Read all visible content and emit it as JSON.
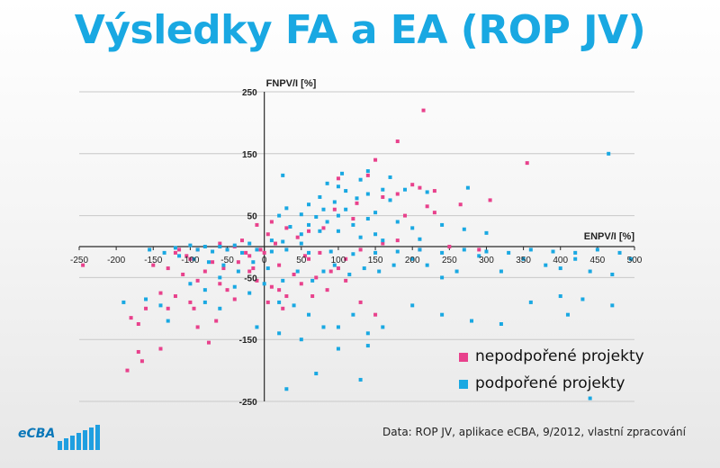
{
  "title": "Výsledky FA a EA (ROP JV)",
  "source": "Data: ROP JV,  aplikace eCBA, 9/2012,  vlastní zpracování",
  "logo_text": "eCBA",
  "colors": {
    "title": "#19a8e2",
    "nepodporene": "#e8418c",
    "podporene": "#19a8e2",
    "grid": "#c8c8c8",
    "axis": "#2a2a2a"
  },
  "chart_data": {
    "type": "scatter",
    "title": "Výsledky FA a EA (ROP JV)",
    "xlabel": "ENPV/I [%]",
    "ylabel": "FNPV/I [%]",
    "xlim": [
      -250,
      500
    ],
    "ylim": [
      -250,
      250
    ],
    "xticks": [
      -250,
      -200,
      -150,
      -100,
      -50,
      0,
      50,
      100,
      150,
      200,
      250,
      300,
      350,
      400,
      450,
      500
    ],
    "yticks": [
      -250,
      -150,
      -50,
      50,
      150,
      250
    ],
    "grid": true,
    "legend_position": "bottom-right",
    "series": [
      {
        "name": "nepodpořené projekty",
        "color": "#e8418c",
        "marker": "square",
        "points": [
          [
            215,
            220
          ],
          [
            180,
            170
          ],
          [
            150,
            140
          ],
          [
            355,
            135
          ],
          [
            140,
            115
          ],
          [
            100,
            110
          ],
          [
            200,
            100
          ],
          [
            210,
            95
          ],
          [
            230,
            90
          ],
          [
            180,
            85
          ],
          [
            160,
            80
          ],
          [
            305,
            75
          ],
          [
            220,
            65
          ],
          [
            265,
            68
          ],
          [
            230,
            55
          ],
          [
            190,
            50
          ],
          [
            120,
            45
          ],
          [
            10,
            40
          ],
          [
            30,
            30
          ],
          [
            60,
            25
          ],
          [
            -10,
            35
          ],
          [
            5,
            20
          ],
          [
            -30,
            10
          ],
          [
            -60,
            5
          ],
          [
            -40,
            0
          ],
          [
            -90,
            -5
          ],
          [
            -120,
            -10
          ],
          [
            -100,
            -20
          ],
          [
            -70,
            -25
          ],
          [
            -150,
            -30
          ],
          [
            -130,
            -35
          ],
          [
            -80,
            -40
          ],
          [
            -110,
            -45
          ],
          [
            -90,
            -55
          ],
          [
            -60,
            -60
          ],
          [
            -50,
            -70
          ],
          [
            -120,
            -80
          ],
          [
            -100,
            -90
          ],
          [
            -140,
            -75
          ],
          [
            -160,
            -100
          ],
          [
            -130,
            -100
          ],
          [
            -90,
            -130
          ],
          [
            -75,
            -155
          ],
          [
            -170,
            -125
          ],
          [
            -180,
            -115
          ],
          [
            -140,
            -165
          ],
          [
            -170,
            -170
          ],
          [
            -165,
            -185
          ],
          [
            -185,
            -200
          ],
          [
            -245,
            -30
          ],
          [
            -20,
            -15
          ],
          [
            0,
            -10
          ],
          [
            20,
            -30
          ],
          [
            40,
            -45
          ],
          [
            50,
            -60
          ],
          [
            70,
            -50
          ],
          [
            90,
            -40
          ],
          [
            100,
            -35
          ],
          [
            30,
            -80
          ],
          [
            20,
            -70
          ],
          [
            -10,
            -55
          ],
          [
            -20,
            -40
          ],
          [
            60,
            -20
          ],
          [
            75,
            -10
          ],
          [
            110,
            -20
          ],
          [
            130,
            -5
          ],
          [
            160,
            5
          ],
          [
            180,
            10
          ],
          [
            210,
            -5
          ],
          [
            250,
            0
          ],
          [
            290,
            -5
          ],
          [
            -5,
            -5
          ],
          [
            15,
            5
          ],
          [
            -50,
            -5
          ],
          [
            -25,
            -10
          ],
          [
            45,
            15
          ],
          [
            80,
            30
          ],
          [
            95,
            60
          ],
          [
            125,
            70
          ],
          [
            110,
            -55
          ],
          [
            85,
            -70
          ],
          [
            10,
            -65
          ],
          [
            -15,
            -35
          ],
          [
            -55,
            -35
          ],
          [
            -105,
            -15
          ],
          [
            -115,
            -5
          ],
          [
            -35,
            -25
          ],
          [
            55,
            -15
          ],
          [
            65,
            -80
          ],
          [
            25,
            -100
          ],
          [
            5,
            -90
          ],
          [
            -40,
            -85
          ],
          [
            130,
            -90
          ],
          [
            -95,
            -100
          ],
          [
            -65,
            -120
          ],
          [
            150,
            -110
          ]
        ]
      },
      {
        "name": "podpořené projekty",
        "color": "#19a8e2",
        "marker": "square",
        "points": [
          [
            465,
            150
          ],
          [
            25,
            115
          ],
          [
            105,
            118
          ],
          [
            140,
            122
          ],
          [
            170,
            112
          ],
          [
            130,
            108
          ],
          [
            85,
            102
          ],
          [
            100,
            97
          ],
          [
            160,
            92
          ],
          [
            190,
            92
          ],
          [
            220,
            88
          ],
          [
            275,
            95
          ],
          [
            110,
            90
          ],
          [
            140,
            85
          ],
          [
            75,
            80
          ],
          [
            125,
            78
          ],
          [
            170,
            75
          ],
          [
            95,
            72
          ],
          [
            60,
            68
          ],
          [
            30,
            62
          ],
          [
            80,
            60
          ],
          [
            110,
            60
          ],
          [
            150,
            55
          ],
          [
            50,
            52
          ],
          [
            20,
            50
          ],
          [
            70,
            48
          ],
          [
            100,
            50
          ],
          [
            140,
            45
          ],
          [
            85,
            40
          ],
          [
            60,
            35
          ],
          [
            120,
            35
          ],
          [
            35,
            32
          ],
          [
            180,
            40
          ],
          [
            200,
            30
          ],
          [
            240,
            35
          ],
          [
            270,
            28
          ],
          [
            300,
            22
          ],
          [
            150,
            20
          ],
          [
            100,
            25
          ],
          [
            75,
            25
          ],
          [
            50,
            20
          ],
          [
            130,
            15
          ],
          [
            160,
            10
          ],
          [
            210,
            12
          ],
          [
            10,
            10
          ],
          [
            25,
            8
          ],
          [
            50,
            5
          ],
          [
            -20,
            5
          ],
          [
            -40,
            2
          ],
          [
            -60,
            0
          ],
          [
            -80,
            0
          ],
          [
            -100,
            2
          ],
          [
            -120,
            -2
          ],
          [
            -90,
            -5
          ],
          [
            -70,
            -8
          ],
          [
            -50,
            -5
          ],
          [
            -30,
            -10
          ],
          [
            -10,
            -5
          ],
          [
            10,
            -8
          ],
          [
            30,
            -5
          ],
          [
            60,
            -10
          ],
          [
            90,
            -8
          ],
          [
            120,
            -12
          ],
          [
            150,
            -10
          ],
          [
            180,
            -8
          ],
          [
            210,
            -5
          ],
          [
            240,
            -10
          ],
          [
            270,
            -5
          ],
          [
            300,
            -8
          ],
          [
            330,
            -10
          ],
          [
            360,
            -5
          ],
          [
            390,
            -8
          ],
          [
            420,
            -10
          ],
          [
            450,
            -5
          ],
          [
            480,
            -10
          ],
          [
            495,
            -20
          ],
          [
            470,
            -45
          ],
          [
            440,
            -40
          ],
          [
            420,
            -20
          ],
          [
            400,
            -35
          ],
          [
            380,
            -30
          ],
          [
            350,
            -20
          ],
          [
            320,
            -40
          ],
          [
            290,
            -15
          ],
          [
            260,
            -40
          ],
          [
            240,
            -50
          ],
          [
            220,
            -30
          ],
          [
            200,
            -20
          ],
          [
            175,
            -30
          ],
          [
            155,
            -40
          ],
          [
            135,
            -35
          ],
          [
            115,
            -45
          ],
          [
            95,
            -30
          ],
          [
            80,
            -40
          ],
          [
            65,
            -55
          ],
          [
            45,
            -40
          ],
          [
            25,
            -55
          ],
          [
            5,
            -35
          ],
          [
            -15,
            -25
          ],
          [
            -35,
            -40
          ],
          [
            -55,
            -30
          ],
          [
            -75,
            -25
          ],
          [
            -95,
            -20
          ],
          [
            -115,
            -15
          ],
          [
            -135,
            -10
          ],
          [
            -155,
            -5
          ],
          [
            -100,
            -60
          ],
          [
            -80,
            -70
          ],
          [
            -60,
            -50
          ],
          [
            -40,
            -65
          ],
          [
            -20,
            -75
          ],
          [
            0,
            -60
          ],
          [
            20,
            -90
          ],
          [
            40,
            -95
          ],
          [
            60,
            -110
          ],
          [
            80,
            -130
          ],
          [
            100,
            -130
          ],
          [
            120,
            -110
          ],
          [
            140,
            -140
          ],
          [
            100,
            -165
          ],
          [
            140,
            -160
          ],
          [
            160,
            -130
          ],
          [
            200,
            -95
          ],
          [
            240,
            -110
          ],
          [
            280,
            -120
          ],
          [
            320,
            -125
          ],
          [
            360,
            -90
          ],
          [
            400,
            -80
          ],
          [
            430,
            -85
          ],
          [
            470,
            -95
          ],
          [
            410,
            -110
          ],
          [
            -160,
            -85
          ],
          [
            -140,
            -95
          ],
          [
            -130,
            -120
          ],
          [
            -80,
            -90
          ],
          [
            -60,
            -100
          ],
          [
            -10,
            -130
          ],
          [
            20,
            -140
          ],
          [
            50,
            -150
          ],
          [
            70,
            -205
          ],
          [
            130,
            -215
          ],
          [
            440,
            -245
          ],
          [
            30,
            -230
          ],
          [
            -190,
            -90
          ]
        ]
      }
    ]
  }
}
